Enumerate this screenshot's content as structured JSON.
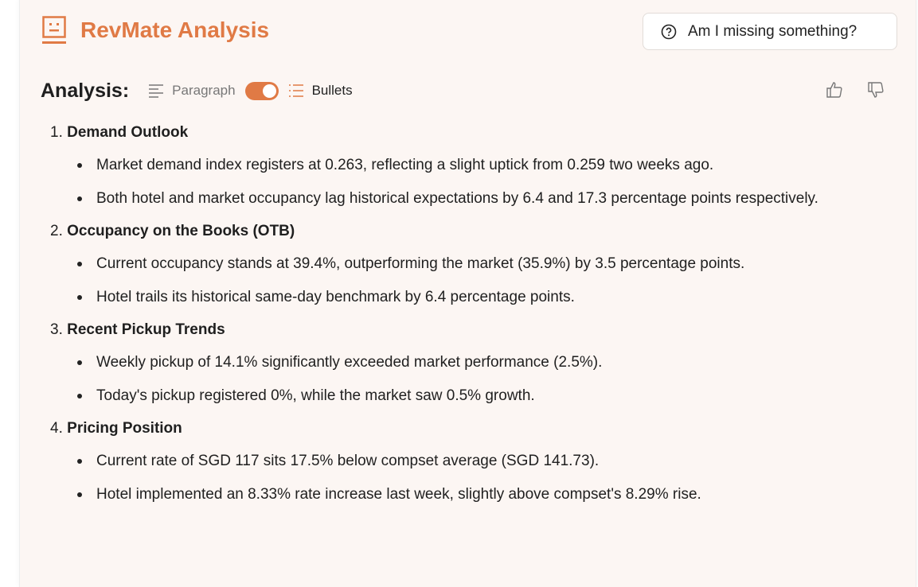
{
  "header": {
    "title": "RevMate Analysis",
    "ask_button": "Am I missing something?"
  },
  "toolbar": {
    "label": "Analysis:",
    "paragraph": "Paragraph",
    "bullets": "Bullets",
    "mode": "bullets"
  },
  "colors": {
    "accent": "#e07a45",
    "card_bg": "#fcf6f3"
  },
  "sections": [
    {
      "num": "1.",
      "heading": "Demand Outlook",
      "bullets": [
        "Market demand index registers at 0.263, reflecting a slight uptick from 0.259 two weeks ago.",
        "Both hotel and market occupancy lag historical expectations by 6.4 and 17.3 percentage points respectively."
      ]
    },
    {
      "num": "2.",
      "heading": "Occupancy on the Books (OTB)",
      "bullets": [
        "Current occupancy stands at 39.4%, outperforming the market (35.9%) by 3.5 percentage points.",
        "Hotel trails its historical same-day benchmark by 6.4 percentage points."
      ]
    },
    {
      "num": "3.",
      "heading": "Recent Pickup Trends",
      "bullets": [
        "Weekly pickup of 14.1% significantly exceeded market performance (2.5%).",
        "Today's pickup registered 0%, while the market saw 0.5% growth."
      ]
    },
    {
      "num": "4.",
      "heading": "Pricing Position",
      "bullets": [
        "Current rate of SGD 117 sits 17.5% below compset average (SGD 141.73).",
        "Hotel implemented an 8.33% rate increase last week, slightly above compset's 8.29% rise."
      ]
    }
  ]
}
